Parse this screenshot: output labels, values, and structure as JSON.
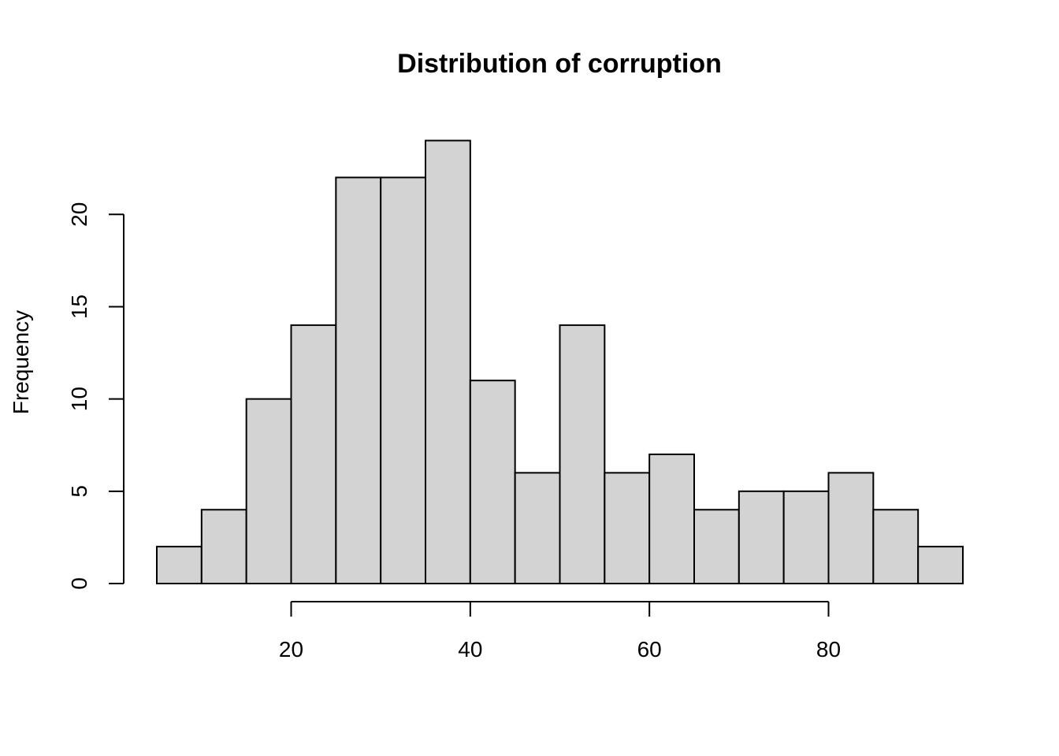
{
  "chart_data": {
    "type": "bar",
    "title": "Distribution of corruption",
    "xlabel": "",
    "ylabel": "Frequency",
    "bin_width": 5,
    "bins": [
      {
        "start": 5,
        "end": 10,
        "count": 2
      },
      {
        "start": 10,
        "end": 15,
        "count": 4
      },
      {
        "start": 15,
        "end": 20,
        "count": 10
      },
      {
        "start": 20,
        "end": 25,
        "count": 14
      },
      {
        "start": 25,
        "end": 30,
        "count": 22
      },
      {
        "start": 30,
        "end": 35,
        "count": 22
      },
      {
        "start": 35,
        "end": 40,
        "count": 24
      },
      {
        "start": 40,
        "end": 45,
        "count": 11
      },
      {
        "start": 45,
        "end": 50,
        "count": 6
      },
      {
        "start": 50,
        "end": 55,
        "count": 14
      },
      {
        "start": 55,
        "end": 60,
        "count": 6
      },
      {
        "start": 60,
        "end": 65,
        "count": 7
      },
      {
        "start": 65,
        "end": 70,
        "count": 4
      },
      {
        "start": 70,
        "end": 75,
        "count": 5
      },
      {
        "start": 75,
        "end": 80,
        "count": 5
      },
      {
        "start": 80,
        "end": 85,
        "count": 6
      },
      {
        "start": 85,
        "end": 90,
        "count": 4
      },
      {
        "start": 90,
        "end": 95,
        "count": 2
      }
    ],
    "x_ticks": [
      20,
      40,
      60,
      80
    ],
    "y_ticks": [
      0,
      5,
      10,
      15,
      20
    ],
    "xlim": [
      5,
      95
    ],
    "ylim": [
      0,
      24
    ],
    "bar_color": "#d3d3d3",
    "grid": false,
    "legend": "none"
  }
}
